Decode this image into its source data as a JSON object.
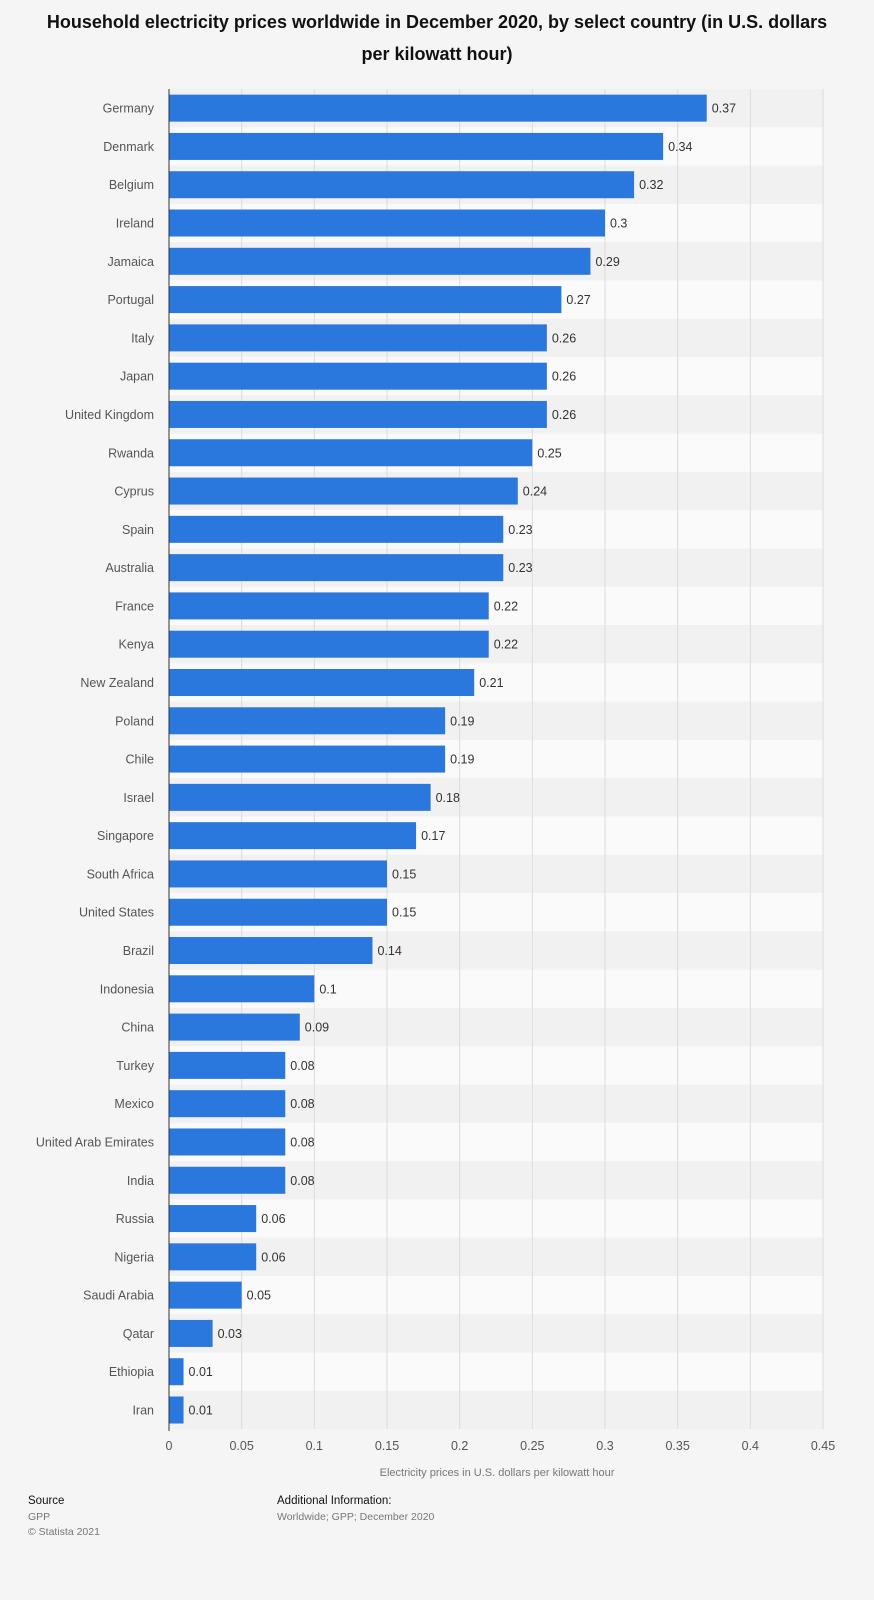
{
  "chart_data": {
    "type": "bar",
    "orientation": "horizontal",
    "title": "Household electricity prices worldwide in December 2020, by select country (in U.S. dollars per kilowatt hour)",
    "xlabel": "Electricity prices in U.S. dollars per kilowatt hour",
    "ylabel": "",
    "xlim": [
      0,
      0.45
    ],
    "ticks": [
      "0",
      "0.05",
      "0.1",
      "0.15",
      "0.2",
      "0.25",
      "0.3",
      "0.35",
      "0.4",
      "0.45"
    ],
    "grid": true,
    "bar_color": "#2a77de",
    "categories": [
      "Germany",
      "Denmark",
      "Belgium",
      "Ireland",
      "Jamaica",
      "Portugal",
      "Italy",
      "Japan",
      "United Kingdom",
      "Rwanda",
      "Cyprus",
      "Spain",
      "Australia",
      "France",
      "Kenya",
      "New Zealand",
      "Poland",
      "Chile",
      "Israel",
      "Singapore",
      "South Africa",
      "United States",
      "Brazil",
      "Indonesia",
      "China",
      "Turkey",
      "Mexico",
      "United Arab Emirates",
      "India",
      "Russia",
      "Nigeria",
      "Saudi Arabia",
      "Qatar",
      "Ethiopia",
      "Iran"
    ],
    "values": [
      0.37,
      0.34,
      0.32,
      0.3,
      0.29,
      0.27,
      0.26,
      0.26,
      0.26,
      0.25,
      0.24,
      0.23,
      0.23,
      0.22,
      0.22,
      0.21,
      0.19,
      0.19,
      0.18,
      0.17,
      0.15,
      0.15,
      0.14,
      0.1,
      0.09,
      0.08,
      0.08,
      0.08,
      0.08,
      0.06,
      0.06,
      0.05,
      0.03,
      0.01,
      0.01
    ]
  },
  "footer": {
    "source_heading": "Source",
    "source_name": "GPP",
    "copyright": "© Statista 2021",
    "info_heading": "Additional Information:",
    "info_text": "Worldwide; GPP; December 2020"
  }
}
